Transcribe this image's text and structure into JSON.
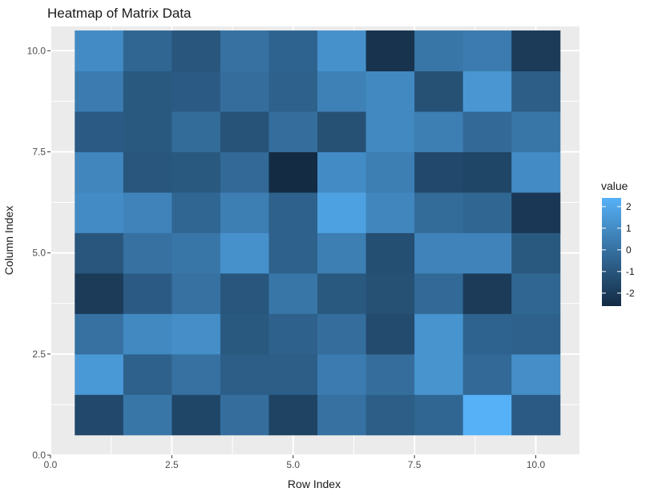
{
  "chart_data": {
    "type": "heatmap",
    "title": "Heatmap of Matrix Data",
    "xlabel": "Row Index",
    "ylabel": "Column Index",
    "xlim": [
      0,
      10.9
    ],
    "ylim": [
      0,
      10.6
    ],
    "x_ticks": [
      0,
      2.5,
      5,
      7.5,
      10
    ],
    "x_tick_labels": [
      "0.0",
      "2.5",
      "5.0",
      "7.5",
      "10.0"
    ],
    "y_ticks": [
      0,
      2.5,
      5,
      7.5,
      10
    ],
    "y_tick_labels": [
      "0.0",
      "2.5",
      "5.0",
      "7.5",
      "10.0"
    ],
    "grid": true,
    "legend": {
      "title": "value",
      "position": "right",
      "min": -2.6,
      "max": 2.4,
      "breaks": [
        2,
        1,
        0,
        -1,
        -2
      ],
      "break_labels": [
        "2",
        "1",
        "0",
        "-1",
        "-2"
      ],
      "low_color": "#132B43",
      "high_color": "#56B1F7"
    },
    "rows_x": [
      1,
      2,
      3,
      4,
      5,
      6,
      7,
      8,
      9,
      10
    ],
    "cols_y": [
      1,
      2,
      3,
      4,
      5,
      6,
      7,
      8,
      9,
      10
    ],
    "matrix": [
      [
        -1.5,
        1.5,
        0.0,
        -2.0,
        -1.0,
        1.0,
        0.8,
        -0.8,
        0.4,
        1.0
      ],
      [
        0.2,
        -0.6,
        0.9,
        -0.8,
        0.0,
        0.7,
        -1.0,
        -0.9,
        -0.9,
        -0.4
      ],
      [
        -1.6,
        0.0,
        1.1,
        0.0,
        0.2,
        -0.4,
        -0.9,
        -0.2,
        -0.8,
        -1.0
      ],
      [
        -0.1,
        -0.7,
        -0.9,
        -1.0,
        1.2,
        0.5,
        -0.3,
        -1.1,
        -0.1,
        0.0
      ],
      [
        -1.7,
        -0.7,
        -0.6,
        0.2,
        -0.6,
        -0.6,
        -2.6,
        -0.1,
        -0.6,
        -0.5
      ],
      [
        0.0,
        0.4,
        -0.1,
        -0.9,
        0.5,
        1.8,
        1.0,
        -1.2,
        0.6,
        1.2
      ],
      [
        -0.7,
        -0.1,
        -1.4,
        -1.2,
        -1.3,
        0.8,
        0.5,
        0.9,
        0.9,
        -2.3
      ],
      [
        -0.4,
        1.3,
        1.3,
        -0.3,
        0.7,
        -0.2,
        -1.5,
        0.5,
        -1.2,
        0.2
      ],
      [
        2.4,
        -0.3,
        -0.5,
        -2.0,
        0.7,
        -0.4,
        -1.6,
        -0.3,
        1.4,
        0.4
      ],
      [
        -0.8,
        1.1,
        -0.6,
        -0.4,
        -0.9,
        -2.1,
        1.0,
        0.2,
        -0.7,
        -2.0
      ]
    ]
  }
}
